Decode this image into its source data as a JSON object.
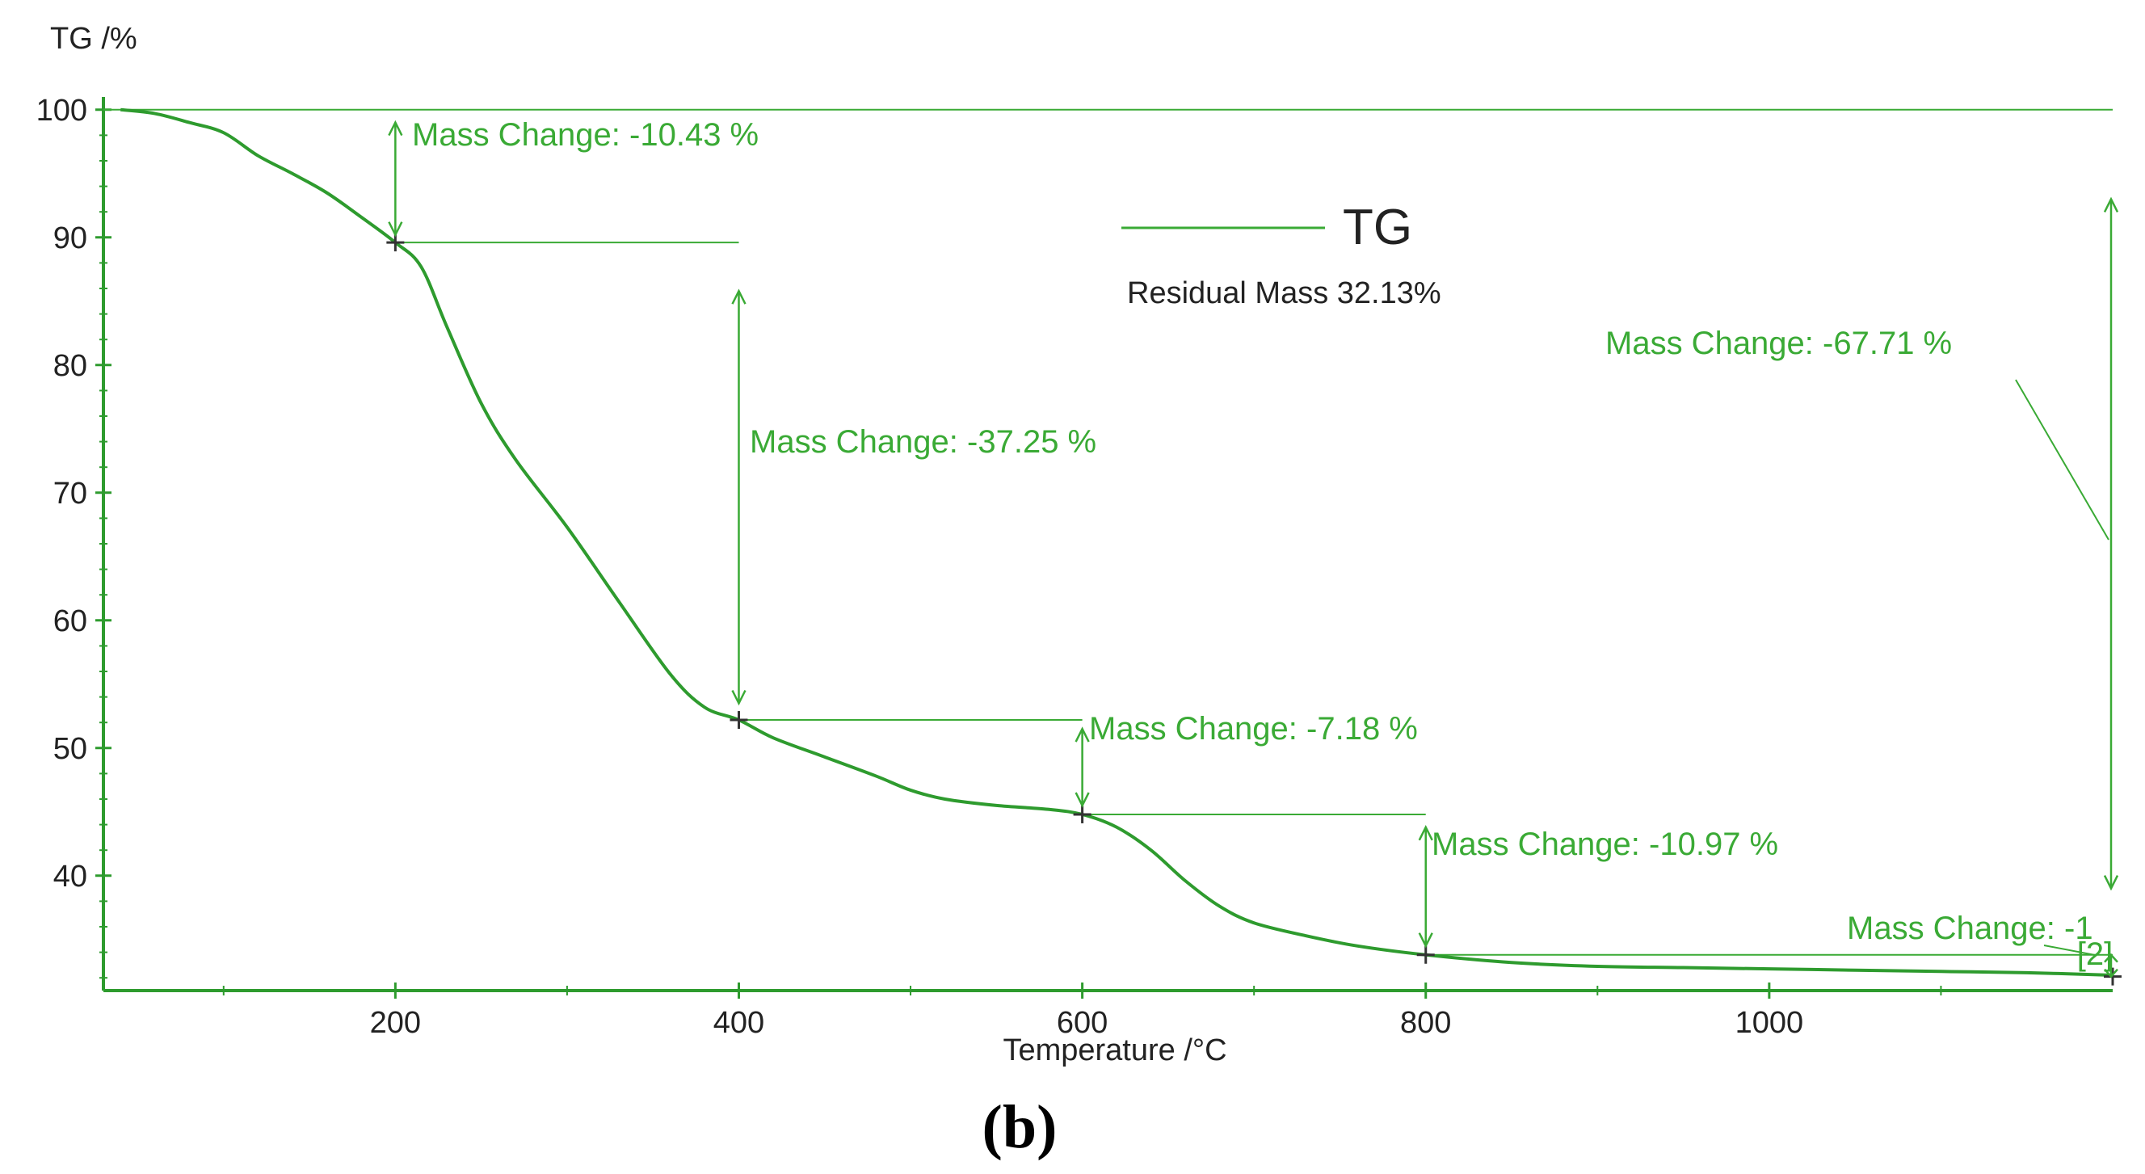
{
  "panel_label": "(b)",
  "colors": {
    "curve": "#2e9b2e",
    "annotation": "#3aaa35",
    "axis": "#2e9b2e",
    "text": "#222222"
  },
  "chart_data": {
    "type": "line",
    "title": "",
    "ylabel": "TG /%",
    "xlabel": "Temperature /°C",
    "xlim": [
      30,
      1200
    ],
    "ylim": [
      31,
      101
    ],
    "x_ticks": [
      200,
      400,
      600,
      800,
      1000
    ],
    "x_tick_labels": [
      "200",
      "400",
      "600",
      "800",
      "1000"
    ],
    "y_ticks": [
      40,
      50,
      60,
      70,
      80,
      90,
      100
    ],
    "y_tick_labels": [
      "40",
      "50",
      "60",
      "70",
      "80",
      "90",
      "100"
    ],
    "legend": {
      "entries": [
        "TG"
      ],
      "position": "top-center"
    },
    "residual_mass": "Residual Mass 32.13%",
    "series": [
      {
        "name": "TG",
        "x": [
          40,
          60,
          80,
          100,
          120,
          140,
          160,
          180,
          200,
          215,
          230,
          250,
          270,
          300,
          330,
          360,
          380,
          400,
          420,
          450,
          480,
          500,
          520,
          550,
          580,
          600,
          620,
          640,
          660,
          680,
          700,
          730,
          760,
          800,
          850,
          900,
          950,
          1000,
          1050,
          1100,
          1150,
          1200
        ],
        "values": [
          100,
          99.7,
          99,
          98.2,
          96.4,
          95,
          93.5,
          91.6,
          89.6,
          87.7,
          83,
          77,
          72.6,
          67.3,
          61.5,
          55.8,
          53.2,
          52.2,
          50.8,
          49.3,
          47.8,
          46.7,
          46,
          45.5,
          45.2,
          44.8,
          43.8,
          42,
          39.6,
          37.6,
          36.3,
          35.3,
          34.5,
          33.8,
          33.2,
          32.9,
          32.8,
          32.7,
          32.6,
          32.5,
          32.4,
          32.2
        ]
      }
    ],
    "markers": [
      {
        "x": 200,
        "y": 89.6
      },
      {
        "x": 400,
        "y": 52.2
      },
      {
        "x": 600,
        "y": 44.8
      },
      {
        "x": 800,
        "y": 33.8
      },
      {
        "x": 1200,
        "y": 32.1
      }
    ],
    "reference_lines": [
      {
        "x1": 30,
        "x2": 1200,
        "y": 100
      },
      {
        "x1": 200,
        "x2": 400,
        "y": 89.6
      },
      {
        "x1": 400,
        "x2": 600,
        "y": 52.2
      },
      {
        "x1": 600,
        "x2": 800,
        "y": 44.8
      },
      {
        "x1": 800,
        "x2": 1200,
        "y": 33.8
      }
    ],
    "mass_changes": [
      {
        "label": "Mass Change: -10.43 %",
        "x": 200,
        "y_top": 99,
        "y_bottom": 90.2
      },
      {
        "label": "Mass Change: -37.25 %",
        "x": 400,
        "y_top": 85.8,
        "y_bottom": 53.5
      },
      {
        "label": "Mass Change: -7.18 %",
        "x": 600,
        "y_top": 51.5,
        "y_bottom": 45.5
      },
      {
        "label": "Mass Change: -10.97 %",
        "x": 800,
        "y_top": 43.8,
        "y_bottom": 34.5
      },
      {
        "label": "Mass Change: -67.71 %",
        "x": 1200,
        "y_top": 93,
        "y_bottom": 39
      },
      {
        "label": "Mass Change: -1",
        "x": 1200,
        "y_top": 33.8,
        "y_bottom": 32.1
      }
    ],
    "small_tag": "[2]"
  }
}
